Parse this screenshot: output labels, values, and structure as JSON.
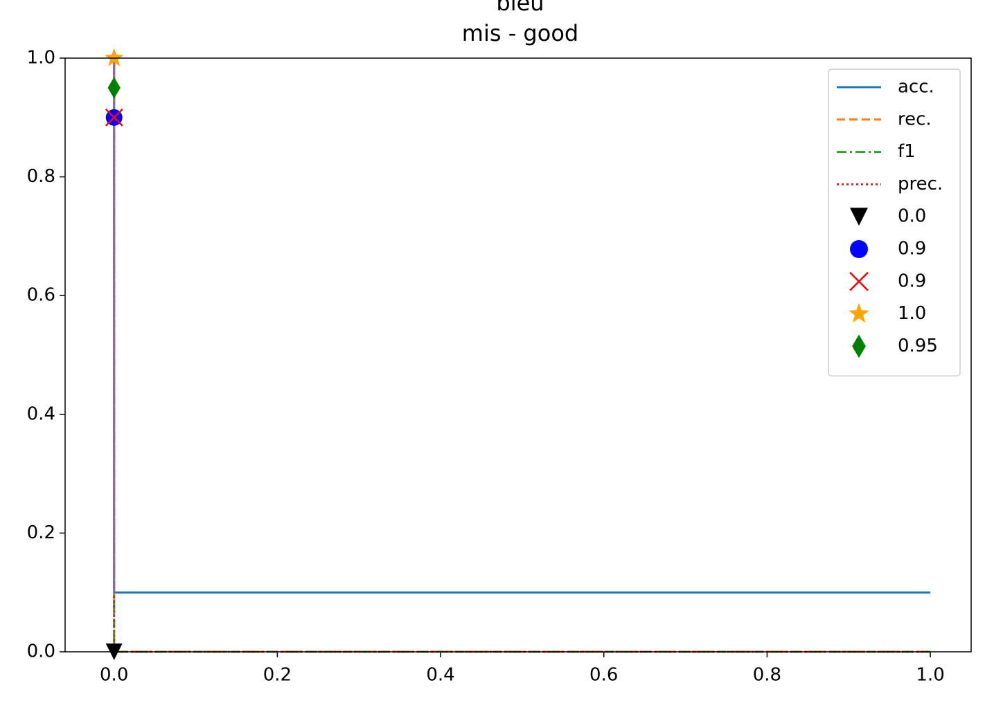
{
  "chart_data": {
    "type": "line",
    "title": "bleu",
    "subtitle": "mis  -  good",
    "xlim": [
      -0.06,
      1.05
    ],
    "ylim": [
      0,
      1
    ],
    "xticks": [
      {
        "value": 0,
        "label": "0.0"
      },
      {
        "value": 0.2,
        "label": "0.2"
      },
      {
        "value": 0.4,
        "label": "0.4"
      },
      {
        "value": 0.6,
        "label": "0.6"
      },
      {
        "value": 0.8,
        "label": "0.8"
      },
      {
        "value": 1,
        "label": "1.0"
      }
    ],
    "yticks": [
      {
        "value": 0,
        "label": "0.0"
      },
      {
        "value": 0.2,
        "label": "0.2"
      },
      {
        "value": 0.4,
        "label": "0.4"
      },
      {
        "value": 0.6,
        "label": "0.6"
      },
      {
        "value": 0.8,
        "label": "0.8"
      },
      {
        "value": 1,
        "label": "1.0"
      }
    ],
    "legend": "upper right",
    "series": [
      {
        "name": "acc.",
        "color": "#1f77b4",
        "linestyle": "solid",
        "x": [
          0,
          0,
          1
        ],
        "values": [
          1,
          0.1,
          0.1
        ]
      },
      {
        "name": "rec.",
        "color": "#ff7f0e",
        "linestyle": "dashed",
        "x": [
          0,
          0,
          1
        ],
        "values": [
          1,
          0,
          0
        ]
      },
      {
        "name": "f1",
        "color": "#2ca02c",
        "linestyle": "dashdot",
        "x": [
          0,
          0,
          1
        ],
        "values": [
          1,
          0,
          0
        ]
      },
      {
        "name": "prec.",
        "color": "#d62728",
        "linestyle": "dotted",
        "x": [
          0,
          0,
          1
        ],
        "values": [
          1,
          0,
          0
        ]
      },
      {
        "color": "#9467bd",
        "linestyle": "solid",
        "x": [
          0,
          0
        ],
        "values": [
          1,
          0.1
        ]
      },
      {
        "name": "0.0",
        "color": "#000000",
        "marker": "triangle-down",
        "x": [
          0
        ],
        "values": [
          0
        ]
      },
      {
        "name": "0.9",
        "color": "#0000ff",
        "marker": "circle",
        "x": [
          0
        ],
        "values": [
          0.9
        ]
      },
      {
        "name": "0.9",
        "color": "#ff0000",
        "marker": "x",
        "x": [
          0
        ],
        "values": [
          0.9
        ]
      },
      {
        "name": "1.0",
        "color": "#ffa500",
        "marker": "star",
        "x": [
          0
        ],
        "values": [
          1
        ]
      },
      {
        "name": "0.95",
        "color": "#008000",
        "marker": "diamond",
        "x": [
          0
        ],
        "values": [
          0.95
        ]
      }
    ]
  }
}
